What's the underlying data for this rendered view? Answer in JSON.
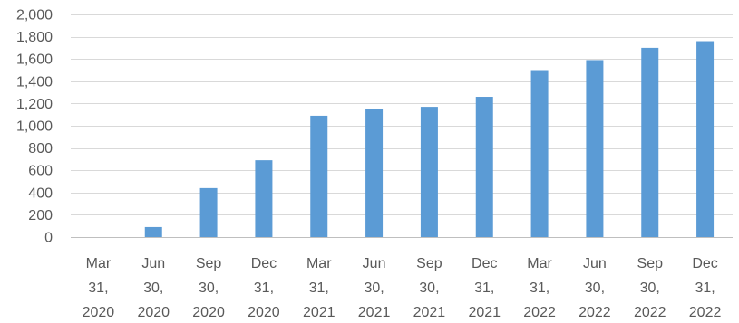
{
  "chart_data": {
    "type": "bar",
    "title": "",
    "xlabel": "",
    "ylabel": "",
    "categories": [
      [
        "Mar",
        "31,",
        "2020"
      ],
      [
        "Jun",
        "30,",
        "2020"
      ],
      [
        "Sep",
        "30,",
        "2020"
      ],
      [
        "Dec",
        "31,",
        "2020"
      ],
      [
        "Mar",
        "31,",
        "2021"
      ],
      [
        "Jun",
        "30,",
        "2021"
      ],
      [
        "Sep",
        "30,",
        "2021"
      ],
      [
        "Dec",
        "31,",
        "2021"
      ],
      [
        "Mar",
        "31,",
        "2022"
      ],
      [
        "Jun",
        "30,",
        "2022"
      ],
      [
        "Sep",
        "30,",
        "2022"
      ],
      [
        "Dec",
        "31,",
        "2022"
      ]
    ],
    "values": [
      0,
      90,
      440,
      690,
      1090,
      1150,
      1170,
      1260,
      1500,
      1590,
      1700,
      1760
    ],
    "ylim": [
      0,
      2000
    ],
    "yticks": [
      0,
      200,
      400,
      600,
      800,
      1000,
      1200,
      1400,
      1600,
      1800,
      2000
    ],
    "ytick_labels": [
      "0",
      "200",
      "400",
      "600",
      "800",
      "1,000",
      "1,200",
      "1,400",
      "1,600",
      "1,800",
      "2,000"
    ],
    "grid": true,
    "legend": "none",
    "bar_color": "#5B9BD5"
  }
}
